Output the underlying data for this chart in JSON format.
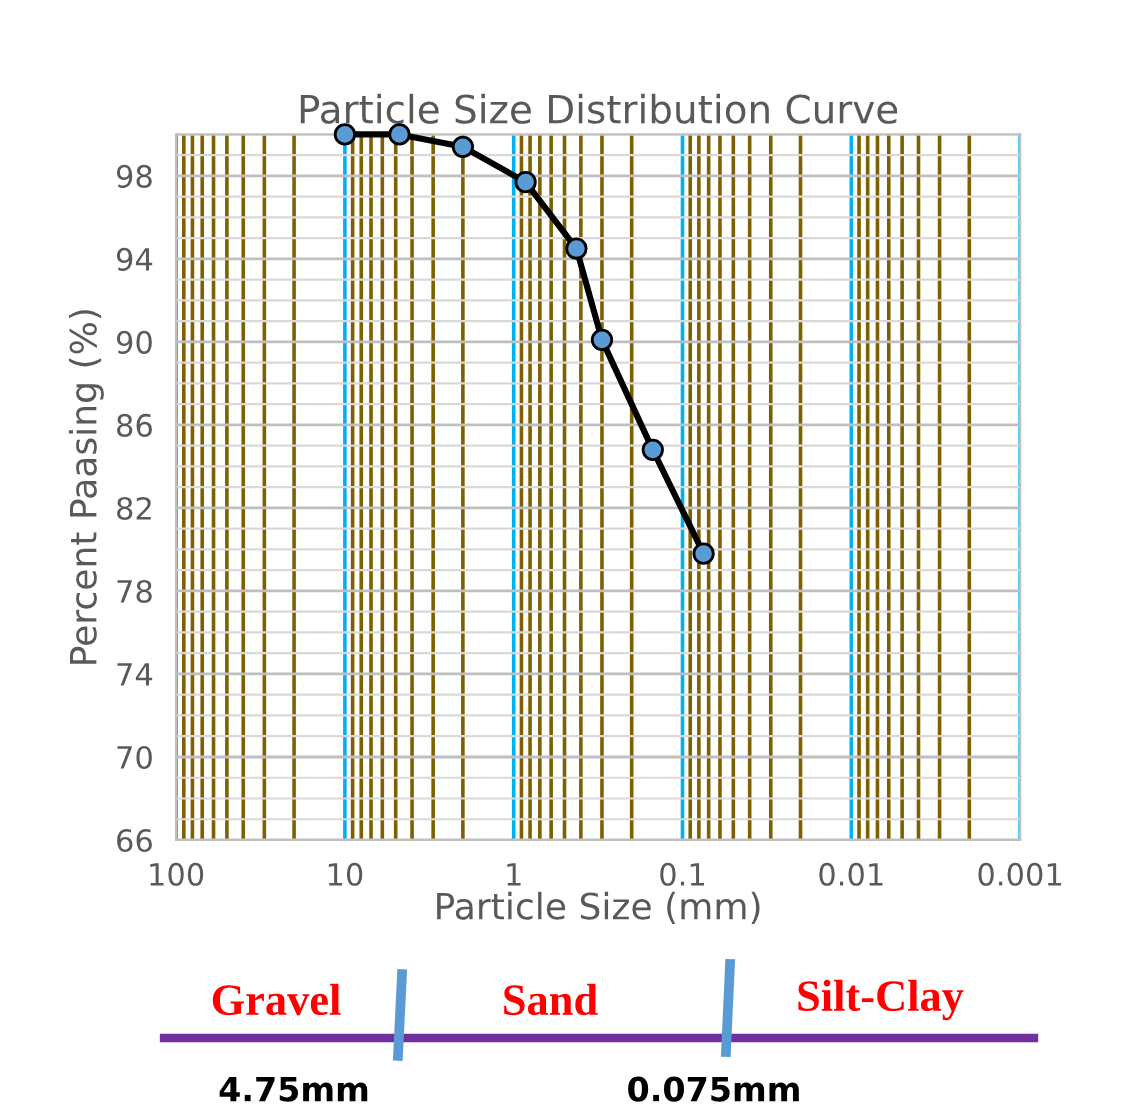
{
  "chart_data": {
    "type": "line",
    "title": "Particle Size Distribution Curve",
    "xlabel": "Particle Size (mm)",
    "ylabel": "Percent Paasing (%)",
    "x": [
      10,
      4.75,
      2,
      0.85,
      0.425,
      0.3,
      0.15,
      0.075
    ],
    "series": [
      {
        "color": "#000000",
        "values": [
          100,
          100,
          99.4,
          97.7,
          94.5,
          90.1,
          84.8,
          79.8
        ]
      }
    ],
    "marker": "circle",
    "log": "x",
    "xlim": [
      100,
      0.001
    ],
    "xticks": [
      100,
      {
        "value": 90,
        "label": null
      },
      {
        "value": 80,
        "label": null
      },
      {
        "value": 70,
        "label": null
      },
      {
        "value": 60,
        "label": null
      },
      {
        "value": 50,
        "label": null
      },
      {
        "value": 40,
        "label": null
      },
      {
        "value": 30,
        "label": null
      },
      {
        "value": 20,
        "label": null
      },
      10,
      {
        "value": 9,
        "label": null
      },
      {
        "value": 8,
        "label": null
      },
      {
        "value": 7,
        "label": null
      },
      {
        "value": 6,
        "label": null
      },
      {
        "value": 5,
        "label": null
      },
      {
        "value": 4,
        "label": null
      },
      {
        "value": 3,
        "label": null
      },
      {
        "value": 2,
        "label": null
      },
      1,
      {
        "value": 0.9,
        "label": null
      },
      {
        "value": 0.8,
        "label": null
      },
      {
        "value": 0.7,
        "label": null
      },
      {
        "value": 0.6,
        "label": null
      },
      {
        "value": 0.5,
        "label": null
      },
      {
        "value": 0.4,
        "label": null
      },
      {
        "value": 0.3,
        "label": null
      },
      {
        "value": 0.2,
        "label": null
      },
      0.1,
      {
        "value": 0.09,
        "label": null
      },
      {
        "value": 0.08,
        "label": null
      },
      {
        "value": 0.07,
        "label": null
      },
      {
        "value": 0.06,
        "label": null
      },
      {
        "value": 0.05,
        "label": null
      },
      {
        "value": 0.04,
        "label": null
      },
      {
        "value": 0.03,
        "label": null
      },
      {
        "value": 0.02,
        "label": null
      },
      0.01,
      {
        "value": 0.009,
        "label": null
      },
      {
        "value": 0.008,
        "label": null
      },
      {
        "value": 0.007,
        "label": null
      },
      {
        "value": 0.006,
        "label": null
      },
      {
        "value": 0.005,
        "label": null
      },
      {
        "value": 0.004,
        "label": null
      },
      {
        "value": 0.003,
        "label": null
      },
      {
        "value": 0.002,
        "label": null
      },
      0.001
    ],
    "ylim": [
      66,
      100
    ],
    "yticks": [
      66,
      70,
      74,
      78,
      82,
      86,
      90,
      94,
      98
    ],
    "grid": true,
    "annotations": [
      "Gravel",
      "Sand",
      "Silt-Clay",
      "4.75mm",
      "0.075mm"
    ]
  }
}
